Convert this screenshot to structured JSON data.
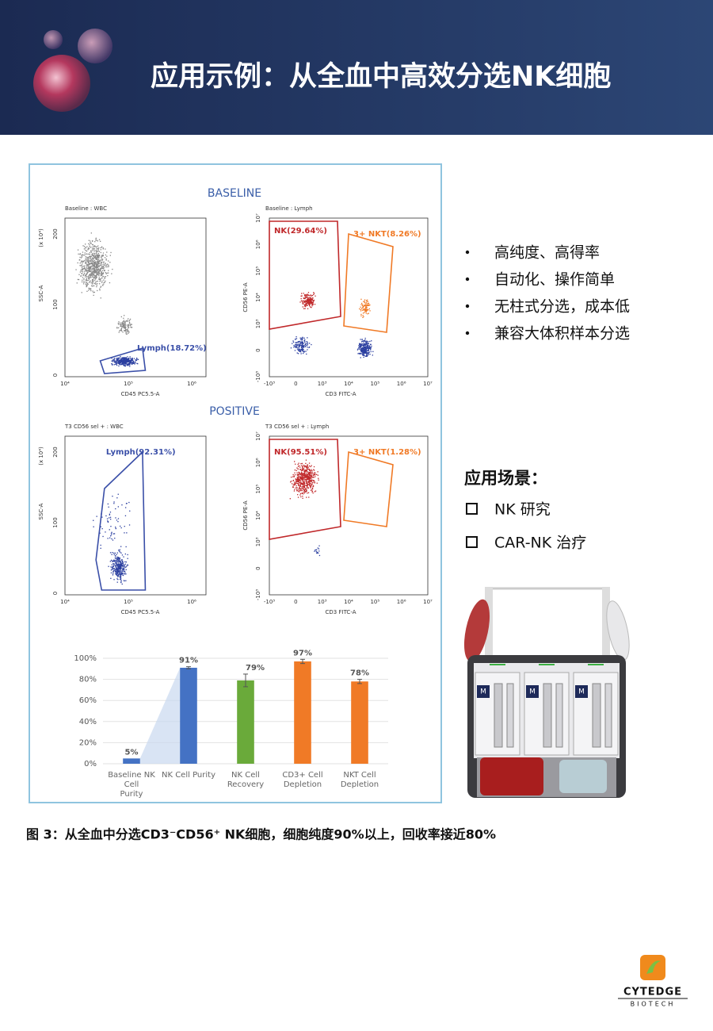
{
  "header": {
    "title": "应用示例：从全血中高效分选NK细胞"
  },
  "flow": {
    "baseline_heading": "BASELINE",
    "positive_heading": "POSITIVE",
    "axis_text": {
      "ssc": "SSC-A",
      "scale": "(x 10⁴)",
      "cd45": "CD45 PC5.5-A",
      "cd56": "CD56 PE-A",
      "cd3": "CD3 FITC-A"
    },
    "ssc_ticks": [
      "200",
      "100",
      "0"
    ],
    "cd45_ticks": [
      "10⁴",
      "10⁵",
      "10⁶"
    ],
    "log_ticks": [
      "-10³",
      "0",
      "10³",
      "10⁴",
      "10⁵",
      "10⁶",
      "10⁷"
    ],
    "plots": [
      {
        "title": "Baseline : WBC",
        "gates": [
          "Lymph(18.72%)"
        ]
      },
      {
        "title": "Baseline : Lymph",
        "gates": [
          "NK(29.64%)",
          "3+ NKT(8.26%)"
        ]
      },
      {
        "title": "T3 CD56 sel + : WBC",
        "gates": [
          "Lymph(92.31%)"
        ]
      },
      {
        "title": "T3 CD56 sel + : Lymph",
        "gates": [
          "NK(95.51%)",
          "3+ NKT(1.28%)"
        ]
      }
    ]
  },
  "chart_data": {
    "type": "bar",
    "categories": [
      "Baseline NK Cell Purity",
      "NK Cell Purity",
      "NK Cell Recovery",
      "CD3+ Cell Depletion",
      "NKT Cell Depletion"
    ],
    "values": [
      5,
      91,
      79,
      97,
      78
    ],
    "value_labels": [
      "5%",
      "91%",
      "79%",
      "97%",
      "78%"
    ],
    "errors": [
      null,
      1,
      6,
      2,
      2
    ],
    "colors": [
      "#4472c4",
      "#4472c4",
      "#6aaa3a",
      "#f07a26",
      "#f07a26"
    ],
    "ylim": [
      0,
      100
    ],
    "yticks": [
      {
        "value": 0,
        "label": "0%"
      },
      {
        "value": 20,
        "label": "20%"
      },
      {
        "value": 40,
        "label": "40%"
      },
      {
        "value": 60,
        "label": "60%"
      },
      {
        "value": 80,
        "label": "80%"
      },
      {
        "value": 100,
        "label": "100%"
      }
    ],
    "grid": true
  },
  "features": [
    "高纯度、高得率",
    "自动化、操作简单",
    "无柱式分选，成本低",
    "兼容大体积样本分选"
  ],
  "scenarios": {
    "title": "应用场景：",
    "items": [
      "NK 研究",
      "CAR-NK 治疗"
    ]
  },
  "instrument": {
    "module_label": "M"
  },
  "caption": "图 3：从全血中分选CD3⁻CD56⁺ NK细胞，细胞纯度90%以上，回收率接近80%",
  "logo": {
    "name": "CYTEDGE",
    "sub": "BIOTECH"
  }
}
